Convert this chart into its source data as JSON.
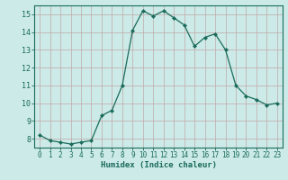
{
  "x": [
    0,
    1,
    2,
    3,
    4,
    5,
    6,
    7,
    8,
    9,
    10,
    11,
    12,
    13,
    14,
    15,
    16,
    17,
    18,
    19,
    20,
    21,
    22,
    23
  ],
  "y": [
    8.2,
    7.9,
    7.8,
    7.7,
    7.8,
    7.9,
    9.3,
    9.6,
    11.0,
    14.1,
    15.2,
    14.9,
    15.2,
    14.8,
    14.4,
    13.2,
    13.7,
    13.9,
    13.0,
    11.0,
    10.4,
    10.2,
    9.9,
    10.0
  ],
  "line_color": "#1a6b5a",
  "marker": "D",
  "marker_size": 2.2,
  "bg_color": "#cceae7",
  "grid_color": "#c0a8a8",
  "xlabel": "Humidex (Indice chaleur)",
  "xlim": [
    -0.5,
    23.5
  ],
  "ylim": [
    7.5,
    15.5
  ],
  "yticks": [
    8,
    9,
    10,
    11,
    12,
    13,
    14,
    15
  ],
  "xticks": [
    0,
    1,
    2,
    3,
    4,
    5,
    6,
    7,
    8,
    9,
    10,
    11,
    12,
    13,
    14,
    15,
    16,
    17,
    18,
    19,
    20,
    21,
    22,
    23
  ],
  "font_color": "#1a6b5a",
  "tick_fontsize": 5.5,
  "xlabel_fontsize": 6.5,
  "ytick_fontsize": 6.0
}
